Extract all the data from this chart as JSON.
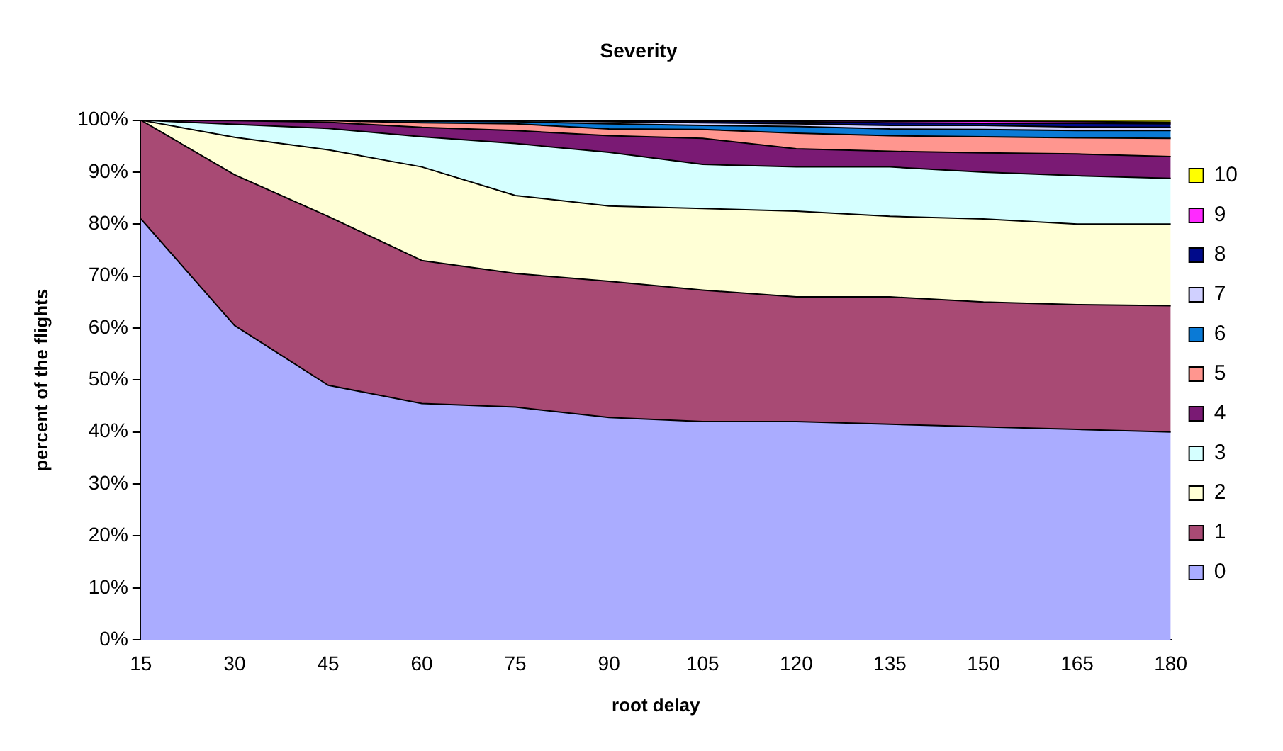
{
  "chart_data": {
    "type": "area",
    "title": "Severity",
    "xlabel": "root delay",
    "ylabel": "percent of the flights",
    "stacked": true,
    "legend": "right",
    "grid": false,
    "categories": [
      "15",
      "30",
      "45",
      "60",
      "75",
      "90",
      "105",
      "120",
      "135",
      "150",
      "165",
      "180"
    ],
    "ylim": [
      0,
      100
    ],
    "yticks": [
      {
        "value": 0,
        "label": "0%"
      },
      {
        "value": 10,
        "label": "10%"
      },
      {
        "value": 20,
        "label": "20%"
      },
      {
        "value": 30,
        "label": "30%"
      },
      {
        "value": 40,
        "label": "40%"
      },
      {
        "value": 50,
        "label": "50%"
      },
      {
        "value": 60,
        "label": "60%"
      },
      {
        "value": 70,
        "label": "70%"
      },
      {
        "value": 80,
        "label": "80%"
      },
      {
        "value": 90,
        "label": "90%"
      },
      {
        "value": 100,
        "label": "100%"
      }
    ],
    "series": [
      {
        "name": "0",
        "color": "#aaacff",
        "values": [
          81,
          60.5,
          49,
          45.5,
          44.8,
          42.8,
          42,
          42,
          41.5,
          41,
          40.5,
          40
        ]
      },
      {
        "name": "1",
        "color": "#a84a74",
        "values": [
          19,
          29,
          32.5,
          27.5,
          25.7,
          26.2,
          25.3,
          24,
          24.5,
          24,
          24,
          24.3
        ]
      },
      {
        "name": "2",
        "color": "#ffffd6",
        "values": [
          0,
          7.2,
          12.8,
          18,
          15,
          14.5,
          15.7,
          16.5,
          15.5,
          16,
          15.5,
          15.7
        ]
      },
      {
        "name": "3",
        "color": "#d5ffff",
        "values": [
          0,
          2.5,
          4.1,
          5.8,
          10,
          10.3,
          8.5,
          8.5,
          9.5,
          9,
          9.3,
          8.8
        ]
      },
      {
        "name": "4",
        "color": "#7a1a74",
        "values": [
          0,
          0.7,
          1.2,
          1.8,
          2.5,
          3.2,
          5,
          3.5,
          3,
          3.7,
          4.2,
          4.2
        ]
      },
      {
        "name": "5",
        "color": "#ff968f",
        "values": [
          0,
          0.1,
          0.3,
          0.9,
          1.3,
          1.3,
          1.7,
          3,
          3,
          3.1,
          3.1,
          3.5
        ]
      },
      {
        "name": "6",
        "color": "#0a7ad6",
        "values": [
          0,
          0,
          0.1,
          0.3,
          0.4,
          1,
          0.8,
          1.3,
          1.3,
          1.4,
          1.4,
          1.5
        ]
      },
      {
        "name": "7",
        "color": "#d0d0ff",
        "values": [
          0,
          0,
          0,
          0.1,
          0.2,
          0.4,
          0.5,
          0.5,
          0.7,
          0.8,
          0.7,
          0.6
        ]
      },
      {
        "name": "8",
        "color": "#000a8a",
        "values": [
          0,
          0,
          0,
          0.1,
          0.1,
          0.2,
          0.3,
          0.4,
          0.5,
          0.4,
          0.7,
          0.7
        ]
      },
      {
        "name": "9",
        "color": "#ff2aff",
        "values": [
          0,
          0,
          0,
          0,
          0,
          0.1,
          0.1,
          0.2,
          0.3,
          0.4,
          0.3,
          0.3
        ]
      },
      {
        "name": "10",
        "color": "#ffff00",
        "values": [
          0,
          0,
          0,
          0,
          0,
          0,
          0.1,
          0.1,
          0.2,
          0.2,
          0.3,
          0.4
        ]
      }
    ]
  }
}
